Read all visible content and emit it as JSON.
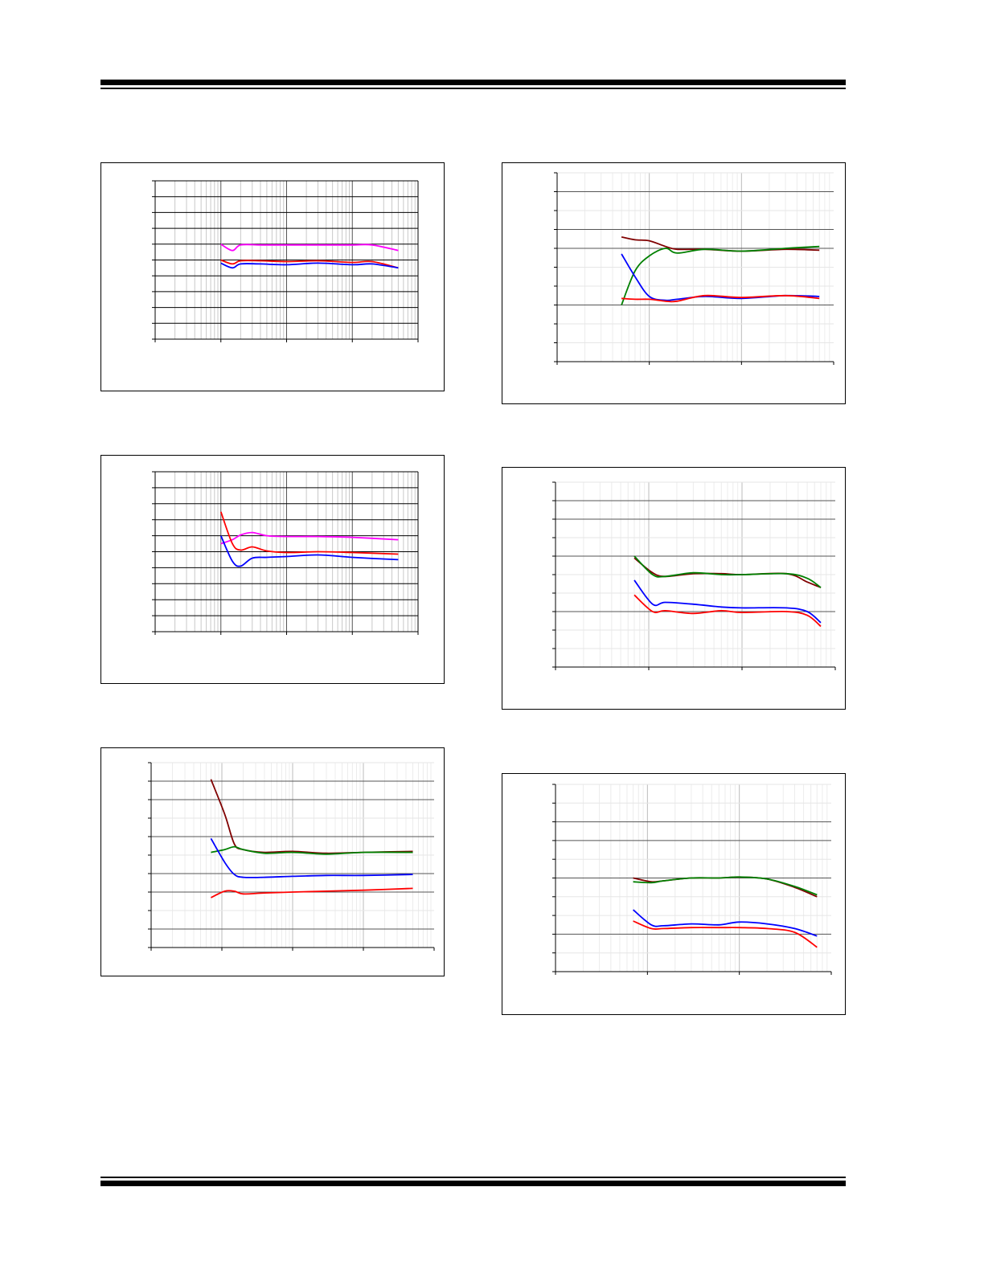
{
  "chart_data": [
    {
      "type": "line",
      "xscale": "log",
      "xlim": [
        10,
        100000
      ],
      "ylim": [
        0,
        10
      ],
      "series": [
        {
          "color": "#ff00ff",
          "x": [
            100,
            150,
            200,
            400,
            1000,
            3000,
            10000,
            20000,
            50000
          ],
          "y": [
            6.0,
            5.6,
            5.95,
            5.95,
            5.95,
            5.95,
            5.95,
            5.95,
            5.6
          ]
        },
        {
          "color": "#ff0000",
          "x": [
            100,
            150,
            200,
            400,
            1000,
            3000,
            10000,
            20000,
            50000
          ],
          "y": [
            5.0,
            4.75,
            4.95,
            4.95,
            4.9,
            4.95,
            4.85,
            4.9,
            4.5
          ]
        },
        {
          "color": "#0000ff",
          "x": [
            100,
            150,
            200,
            400,
            1000,
            3000,
            10000,
            20000,
            50000
          ],
          "y": [
            4.8,
            4.5,
            4.75,
            4.75,
            4.7,
            4.8,
            4.7,
            4.75,
            4.5
          ]
        }
      ]
    },
    {
      "type": "line",
      "xscale": "log",
      "xlim": [
        10,
        100000
      ],
      "ylim": [
        0,
        10
      ],
      "series": [
        {
          "color": "#ff00ff",
          "x": [
            100,
            150,
            200,
            300,
            500,
            1000,
            3000,
            10000,
            50000
          ],
          "y": [
            5.5,
            5.75,
            6.05,
            6.2,
            6.0,
            5.95,
            5.95,
            5.9,
            5.75
          ]
        },
        {
          "color": "#ff0000",
          "x": [
            100,
            150,
            200,
            300,
            500,
            1000,
            3000,
            10000,
            50000
          ],
          "y": [
            7.5,
            5.5,
            5.1,
            5.3,
            5.05,
            4.95,
            5.0,
            4.95,
            4.85
          ]
        },
        {
          "color": "#0000ff",
          "x": [
            100,
            150,
            200,
            300,
            500,
            1000,
            3000,
            10000,
            50000
          ],
          "y": [
            6.0,
            4.4,
            4.1,
            4.6,
            4.65,
            4.7,
            4.8,
            4.65,
            4.5
          ]
        }
      ]
    },
    {
      "type": "line",
      "xscale": "log",
      "xlim": [
        10,
        100000
      ],
      "ylim": [
        0,
        10
      ],
      "series": [
        {
          "color": "#800000",
          "x": [
            70,
            110,
            150,
            200,
            400,
            1000,
            3000,
            10000,
            50000
          ],
          "y": [
            9.1,
            7.2,
            5.6,
            5.3,
            5.15,
            5.2,
            5.1,
            5.15,
            5.2
          ]
        },
        {
          "color": "#008000",
          "x": [
            70,
            110,
            150,
            200,
            400,
            1000,
            3000,
            10000,
            50000
          ],
          "y": [
            5.15,
            5.3,
            5.45,
            5.3,
            5.1,
            5.15,
            5.05,
            5.15,
            5.15
          ]
        },
        {
          "color": "#0000ff",
          "x": [
            70,
            110,
            150,
            200,
            400,
            1000,
            3000,
            10000,
            50000
          ],
          "y": [
            5.9,
            4.6,
            3.95,
            3.8,
            3.8,
            3.85,
            3.9,
            3.9,
            3.95
          ]
        },
        {
          "color": "#ff0000",
          "x": [
            70,
            110,
            150,
            200,
            400,
            1000,
            3000,
            10000,
            50000
          ],
          "y": [
            2.7,
            3.05,
            3.05,
            2.9,
            2.95,
            3.0,
            3.05,
            3.1,
            3.2
          ]
        }
      ]
    },
    {
      "type": "line",
      "xscale": "log",
      "xlim": [
        10,
        10000
      ],
      "ylim": [
        0,
        10
      ],
      "series": [
        {
          "color": "#800000",
          "x": [
            50,
            70,
            100,
            150,
            200,
            400,
            1000,
            3000,
            7000
          ],
          "y": [
            6.6,
            6.45,
            6.4,
            6.1,
            5.95,
            5.95,
            5.85,
            5.95,
            5.9
          ]
        },
        {
          "color": "#008000",
          "x": [
            50,
            70,
            100,
            150,
            200,
            400,
            1000,
            3000,
            7000
          ],
          "y": [
            3.0,
            4.8,
            5.6,
            6.0,
            5.75,
            5.95,
            5.85,
            6.0,
            6.1
          ]
        },
        {
          "color": "#0000ff",
          "x": [
            50,
            70,
            100,
            150,
            200,
            400,
            1000,
            3000,
            7000
          ],
          "y": [
            5.7,
            4.5,
            3.45,
            3.25,
            3.3,
            3.45,
            3.35,
            3.5,
            3.45
          ]
        },
        {
          "color": "#ff0000",
          "x": [
            50,
            70,
            100,
            150,
            200,
            400,
            1000,
            3000,
            7000
          ],
          "y": [
            3.35,
            3.3,
            3.3,
            3.2,
            3.2,
            3.5,
            3.4,
            3.5,
            3.35
          ]
        }
      ]
    },
    {
      "type": "line",
      "xscale": "log",
      "xlim": [
        10,
        10000
      ],
      "ylim": [
        0,
        10
      ],
      "series": [
        {
          "color": "#800000",
          "x": [
            70,
            110,
            150,
            300,
            600,
            1000,
            3000,
            5000,
            7000
          ],
          "y": [
            5.9,
            5.1,
            4.9,
            5.05,
            5.05,
            5.0,
            5.05,
            4.6,
            4.3
          ]
        },
        {
          "color": "#008000",
          "x": [
            70,
            110,
            150,
            300,
            600,
            1000,
            3000,
            5000,
            7000
          ],
          "y": [
            6.0,
            5.0,
            4.9,
            5.1,
            5.0,
            5.0,
            5.05,
            4.8,
            4.3
          ]
        },
        {
          "color": "#0000ff",
          "x": [
            70,
            110,
            150,
            300,
            600,
            1000,
            3000,
            5000,
            7000
          ],
          "y": [
            4.7,
            3.4,
            3.5,
            3.4,
            3.25,
            3.2,
            3.2,
            3.0,
            2.4
          ]
        },
        {
          "color": "#ff0000",
          "x": [
            70,
            110,
            150,
            300,
            600,
            1000,
            3000,
            5000,
            7000
          ],
          "y": [
            3.9,
            3.0,
            3.05,
            2.9,
            3.05,
            2.95,
            3.0,
            2.8,
            2.2
          ]
        }
      ]
    },
    {
      "type": "line",
      "xscale": "log",
      "xlim": [
        10,
        10000
      ],
      "ylim": [
        0,
        10
      ],
      "series": [
        {
          "color": "#800000",
          "x": [
            70,
            110,
            150,
            300,
            600,
            1000,
            2000,
            4000,
            7000
          ],
          "y": [
            5.0,
            4.8,
            4.85,
            5.0,
            5.0,
            5.05,
            4.95,
            4.5,
            4.0
          ]
        },
        {
          "color": "#008000",
          "x": [
            70,
            110,
            150,
            300,
            600,
            1000,
            2000,
            4000,
            7000
          ],
          "y": [
            4.8,
            4.75,
            4.85,
            5.0,
            5.0,
            5.05,
            4.95,
            4.55,
            4.1
          ]
        },
        {
          "color": "#0000ff",
          "x": [
            70,
            110,
            150,
            300,
            600,
            1000,
            2000,
            4000,
            7000
          ],
          "y": [
            3.3,
            2.5,
            2.45,
            2.55,
            2.5,
            2.65,
            2.55,
            2.3,
            1.9
          ]
        },
        {
          "color": "#ff0000",
          "x": [
            70,
            110,
            150,
            300,
            600,
            1000,
            2000,
            4000,
            7000
          ],
          "y": [
            2.7,
            2.3,
            2.3,
            2.35,
            2.35,
            2.35,
            2.3,
            2.1,
            1.3
          ]
        }
      ]
    }
  ]
}
